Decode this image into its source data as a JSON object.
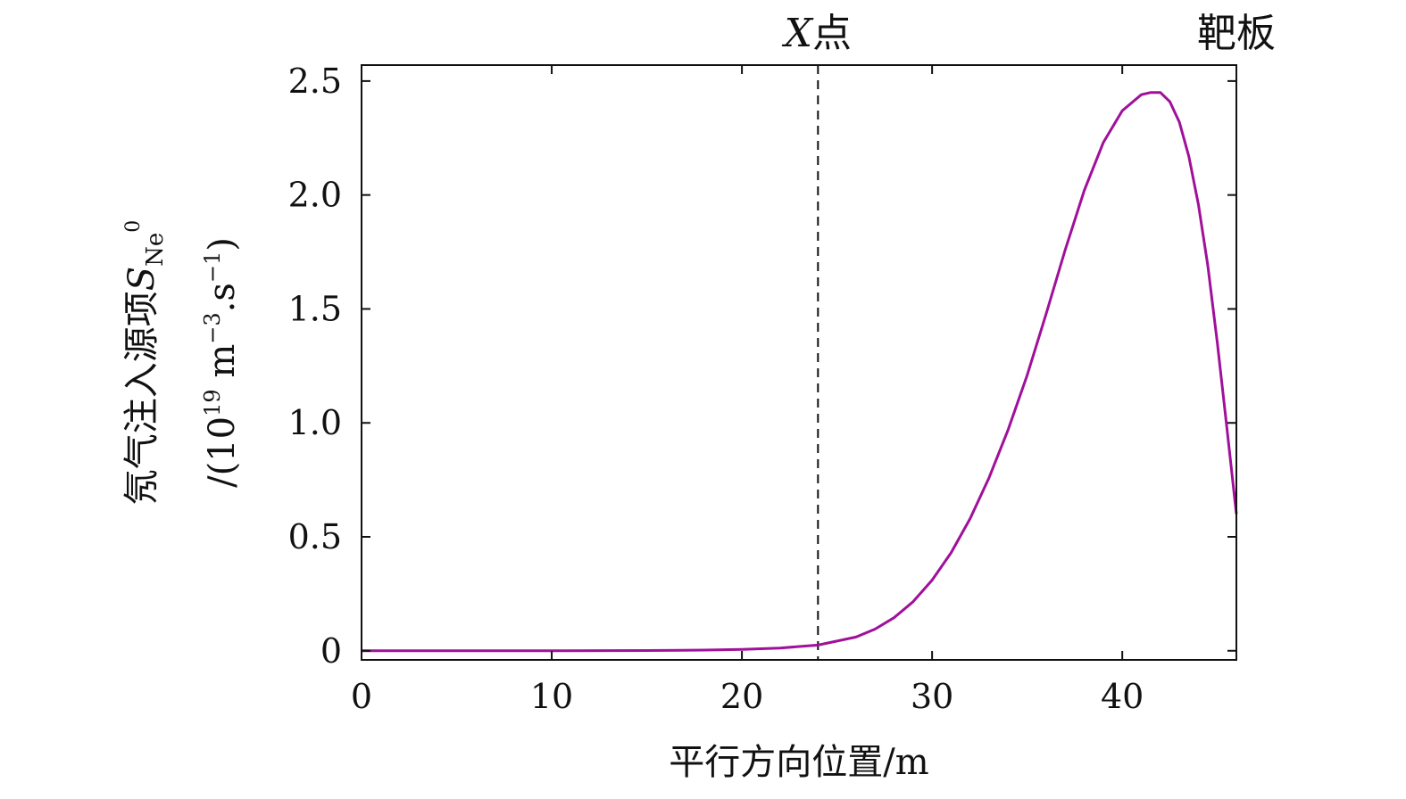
{
  "chart_data": {
    "type": "line",
    "title": "",
    "xlabel": "平行方向位置/m",
    "ylabel": {
      "main": "氖气注入源项",
      "symbol": "S",
      "subscript": "Ne",
      "superscript": "0"
    },
    "ylabel_unit": {
      "open": "/(10",
      "exp1": "19",
      "mid": " m",
      "exp2": "−3",
      "mid2": ".s",
      "exp3": "−1",
      "close": ")"
    },
    "xlim": [
      0,
      46
    ],
    "ylim": [
      -0.04,
      2.57
    ],
    "xticks": [
      0,
      10,
      20,
      30,
      40
    ],
    "xtick_labels": [
      "0",
      "10",
      "20",
      "30",
      "40"
    ],
    "yticks": [
      0,
      0.5,
      1.0,
      1.5,
      2.0,
      2.5
    ],
    "ytick_labels": [
      "0",
      "0.5",
      "1.0",
      "1.5",
      "2.0",
      "2.5"
    ],
    "grid": false,
    "series": [
      {
        "color": "#a0109a",
        "x": [
          0,
          5,
          10,
          15,
          18,
          20,
          22,
          24,
          26,
          27,
          28,
          29,
          30,
          31,
          32,
          33,
          34,
          35,
          36,
          37,
          38,
          39,
          40,
          41,
          41.5,
          42,
          42.5,
          43,
          43.5,
          44,
          44.5,
          45,
          45.5,
          46
        ],
        "y": [
          0.0,
          0.0,
          0.0,
          0.001,
          0.003,
          0.006,
          0.012,
          0.025,
          0.06,
          0.095,
          0.145,
          0.215,
          0.31,
          0.43,
          0.58,
          0.76,
          0.97,
          1.21,
          1.48,
          1.76,
          2.02,
          2.23,
          2.37,
          2.44,
          2.45,
          2.45,
          2.41,
          2.32,
          2.17,
          1.96,
          1.69,
          1.35,
          0.98,
          0.6
        ]
      }
    ],
    "vline": {
      "x": 24,
      "style": "dashed",
      "label_italic": "X",
      "label_rest": "点"
    },
    "target_label": "靶板"
  }
}
